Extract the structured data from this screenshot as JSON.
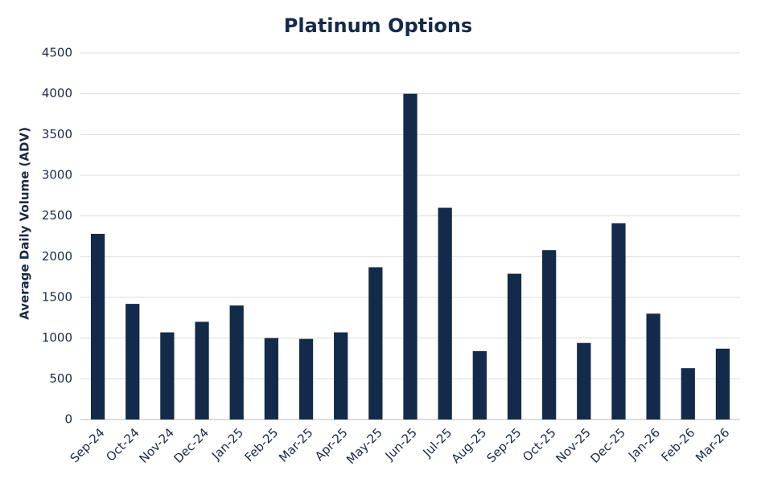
{
  "chart_data": {
    "type": "bar",
    "title": "Platinum Options",
    "y_label": "Average Daily Volume (ADV)",
    "categories": [
      "Sep-24",
      "Oct-24",
      "Nov-24",
      "Dec-24",
      "Jan-25",
      "Feb-25",
      "Mar-25",
      "Apr-25",
      "May-25",
      "Jun-25",
      "Jul-25",
      "Aug-25",
      "Sep-25",
      "Oct-25",
      "Nov-25",
      "Dec-25",
      "Jan-26",
      "Feb-26",
      "Mar-26"
    ],
    "values": [
      2280,
      1420,
      1070,
      1200,
      1400,
      1000,
      990,
      1070,
      1870,
      4000,
      2600,
      840,
      1790,
      2080,
      940,
      2410,
      1300,
      630,
      870
    ],
    "color": "#142a4a",
    "ylim": [
      0,
      4500
    ],
    "yticks": [
      0,
      500,
      1000,
      1500,
      2000,
      2500,
      3000,
      3500,
      4000,
      4500
    ],
    "grid": true
  }
}
